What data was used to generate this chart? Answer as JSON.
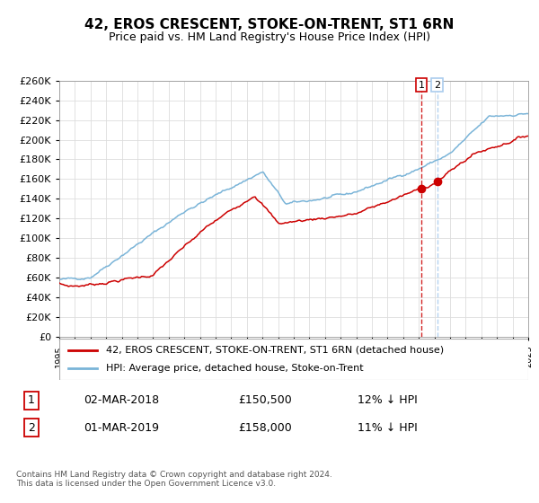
{
  "title": "42, EROS CRESCENT, STOKE-ON-TRENT, ST1 6RN",
  "subtitle": "Price paid vs. HM Land Registry's House Price Index (HPI)",
  "legend_line1": "42, EROS CRESCENT, STOKE-ON-TRENT, ST1 6RN (detached house)",
  "legend_line2": "HPI: Average price, detached house, Stoke-on-Trent",
  "transaction1_num": "1",
  "transaction1_date": "02-MAR-2018",
  "transaction1_price": "£150,500",
  "transaction1_hpi": "12% ↓ HPI",
  "transaction2_num": "2",
  "transaction2_date": "01-MAR-2019",
  "transaction2_price": "£158,000",
  "transaction2_hpi": "11% ↓ HPI",
  "footer": "Contains HM Land Registry data © Crown copyright and database right 2024.\nThis data is licensed under the Open Government Licence v3.0.",
  "hpi_color": "#7ab4d8",
  "price_color": "#cc0000",
  "marker1_color": "#cc0000",
  "vline1_color": "#cc0000",
  "vline2_color": "#aaccee",
  "grid_color": "#dddddd",
  "bg_color": "#ffffff",
  "ylim": [
    0,
    260000
  ],
  "ytick_step": 20000,
  "title_fontsize": 11,
  "subtitle_fontsize": 9
}
